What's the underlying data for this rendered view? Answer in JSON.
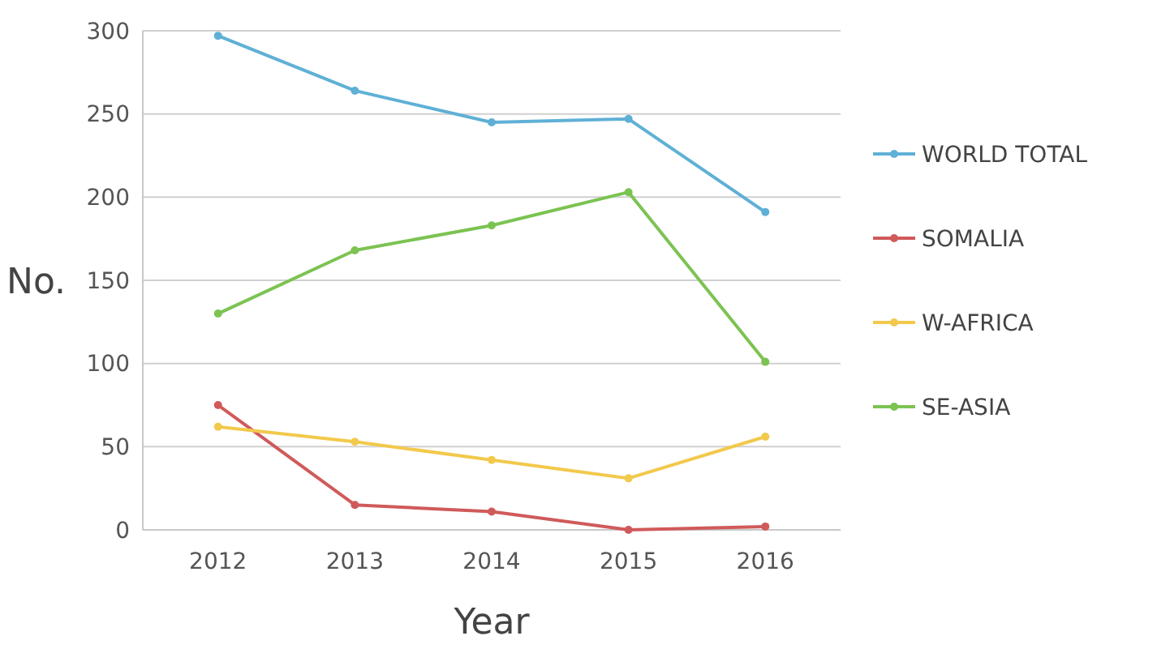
{
  "chart_data": {
    "type": "line",
    "xlabel": "Year",
    "ylabel": "No.",
    "categories": [
      "2012",
      "2013",
      "2014",
      "2015",
      "2016"
    ],
    "series": [
      {
        "name": "WORLD TOTAL",
        "color": "#5fb0d6",
        "values": [
          297,
          264,
          245,
          247,
          191
        ]
      },
      {
        "name": "SOMALIA",
        "color": "#d05a5a",
        "values": [
          75,
          15,
          11,
          0,
          2
        ]
      },
      {
        "name": "W-AFRICA",
        "color": "#f2c94c",
        "values": [
          62,
          53,
          42,
          31,
          56
        ]
      },
      {
        "name": "SE-ASIA",
        "color": "#7cc352",
        "values": [
          130,
          168,
          183,
          203,
          101
        ]
      }
    ],
    "ylim": [
      0,
      300
    ],
    "yticks": [
      0,
      50,
      100,
      150,
      200,
      250,
      300
    ],
    "grid": "y",
    "legend": "right",
    "marker": "circle",
    "line_style": "solid"
  }
}
